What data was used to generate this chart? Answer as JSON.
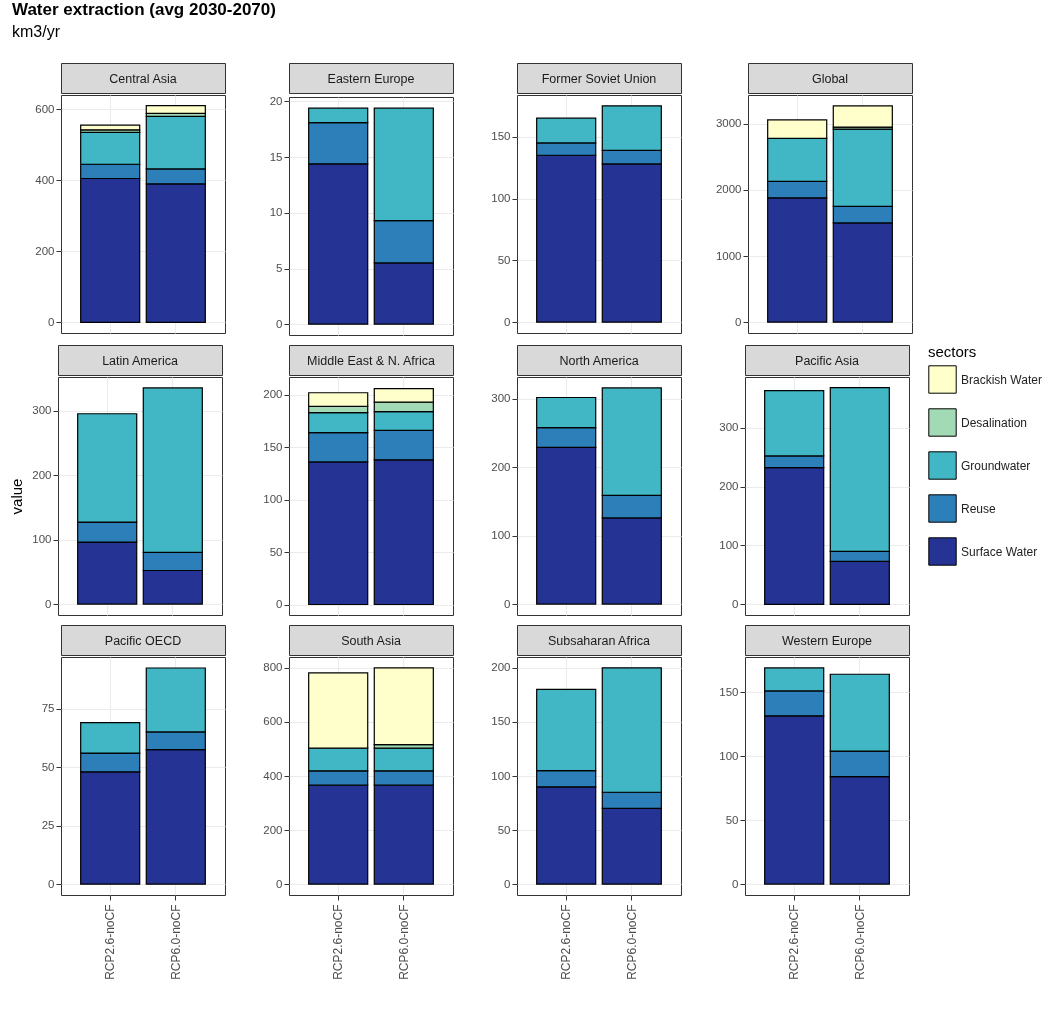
{
  "chart_data": [
    {
      "type": "bar",
      "title": "Central Asia",
      "annotations": [
        "Water extraction (avg 2030-2070)",
        "km3/yr"
      ],
      "stacked": true,
      "categories": [
        null,
        null
      ],
      "ylim": [
        -30,
        640
      ],
      "yticks": [
        0,
        200,
        400,
        600
      ],
      "grid": true,
      "tick_labels": "y",
      "series": [
        {
          "color": "#253494",
          "values": [
            405,
            390
          ]
        },
        {
          "color": "#2c7fb8",
          "values": [
            40,
            42
          ]
        },
        {
          "color": "#41b6c4",
          "values": [
            90,
            148
          ]
        },
        {
          "color": "#a1dab4",
          "values": [
            7,
            8
          ]
        },
        {
          "color": "#ffffcc",
          "values": [
            13,
            22
          ]
        }
      ]
    },
    {
      "type": "bar",
      "title": "Eastern Europe",
      "stacked": true,
      "categories": [
        null,
        null
      ],
      "ylim": [
        -0.97,
        20.4
      ],
      "yticks": [
        0,
        5,
        10,
        15,
        20
      ],
      "grid": true,
      "tick_labels": "y",
      "series": [
        {
          "color": "#253494",
          "values": [
            14.4,
            5.5
          ]
        },
        {
          "color": "#2c7fb8",
          "values": [
            3.7,
            3.8
          ]
        },
        {
          "color": "#41b6c4",
          "values": [
            1.3,
            10.1
          ]
        }
      ]
    },
    {
      "type": "bar",
      "title": "Former Soviet Union",
      "stacked": true,
      "categories": [
        null,
        null
      ],
      "ylim": [
        -8.75,
        183.75
      ],
      "yticks": [
        0,
        50,
        100,
        150
      ],
      "grid": true,
      "tick_labels": "y",
      "series": [
        {
          "color": "#253494",
          "values": [
            135,
            128
          ]
        },
        {
          "color": "#2c7fb8",
          "values": [
            10,
            11
          ]
        },
        {
          "color": "#41b6c4",
          "values": [
            20,
            36
          ]
        }
      ]
    },
    {
      "type": "bar",
      "title": "Global",
      "stacked": true,
      "categories": [
        null,
        null
      ],
      "ylim": [
        -164,
        3435
      ],
      "yticks": [
        0,
        1000,
        2000,
        3000
      ],
      "grid": true,
      "tick_labels": "y",
      "series": [
        {
          "color": "#253494",
          "values": [
            1880,
            1500
          ]
        },
        {
          "color": "#2c7fb8",
          "values": [
            250,
            250
          ]
        },
        {
          "color": "#41b6c4",
          "values": [
            650,
            1170
          ]
        },
        {
          "color": "#a1dab4",
          "values": [
            null,
            30
          ]
        },
        {
          "color": "#ffffcc",
          "values": [
            280,
            320
          ]
        }
      ]
    },
    {
      "type": "bar",
      "title": "Latin America",
      "ylabel": "value",
      "stacked": true,
      "categories": [
        null,
        null
      ],
      "ylim": [
        -17,
        352
      ],
      "yticks": [
        0,
        100,
        200,
        300
      ],
      "grid": true,
      "tick_labels": "y",
      "series": [
        {
          "color": "#253494",
          "values": [
            96,
            52
          ]
        },
        {
          "color": "#2c7fb8",
          "values": [
            31,
            28
          ]
        },
        {
          "color": "#41b6c4",
          "values": [
            168,
            255
          ]
        }
      ]
    },
    {
      "type": "bar",
      "title": "Middle East & N. Africa",
      "stacked": true,
      "categories": [
        null,
        null
      ],
      "ylim": [
        -10,
        217
      ],
      "yticks": [
        0,
        50,
        100,
        150,
        200
      ],
      "grid": true,
      "tick_labels": "y",
      "series": [
        {
          "color": "#253494",
          "values": [
            136,
            138
          ]
        },
        {
          "color": "#2c7fb8",
          "values": [
            28,
            28
          ]
        },
        {
          "color": "#41b6c4",
          "values": [
            19,
            18
          ]
        },
        {
          "color": "#a1dab4",
          "values": [
            6,
            9
          ]
        },
        {
          "color": "#ffffcc",
          "values": [
            13,
            13
          ]
        }
      ]
    },
    {
      "type": "bar",
      "title": "North America",
      "stacked": true,
      "categories": [
        null,
        null
      ],
      "ylim": [
        -16,
        332
      ],
      "yticks": [
        0,
        100,
        200,
        300
      ],
      "grid": true,
      "tick_labels": "y",
      "series": [
        {
          "color": "#253494",
          "values": [
            229,
            126
          ]
        },
        {
          "color": "#2c7fb8",
          "values": [
            29,
            33
          ]
        },
        {
          "color": "#41b6c4",
          "values": [
            44,
            157
          ]
        }
      ]
    },
    {
      "type": "bar",
      "title": "Pacific Asia",
      "legend": "right",
      "legend_title": "sectors",
      "stacked": true,
      "categories": [
        null,
        null
      ],
      "ylim": [
        -18,
        386
      ],
      "yticks": [
        0,
        100,
        200,
        300
      ],
      "grid": true,
      "tick_labels": "y",
      "series": [
        {
          "name": "Surface Water",
          "color": "#253494",
          "values": [
            232,
            73
          ]
        },
        {
          "name": "Reuse",
          "color": "#2c7fb8",
          "values": [
            20,
            17
          ]
        },
        {
          "name": "Groundwater",
          "color": "#41b6c4",
          "values": [
            111,
            278
          ]
        },
        {
          "name": "Desalination",
          "color": "#a1dab4",
          "values": [
            null,
            null
          ]
        },
        {
          "name": "Brackish Water",
          "color": "#ffffcc",
          "values": [
            null,
            null
          ]
        }
      ]
    },
    {
      "type": "bar",
      "title": "Pacific OECD",
      "stacked": true,
      "categories": [
        "RCP2.6-noCF",
        "RCP6.0-noCF"
      ],
      "ylim": [
        -4.6,
        97
      ],
      "yticks": [
        0,
        25,
        50,
        75
      ],
      "grid": true,
      "series": [
        {
          "color": "#253494",
          "values": [
            48,
            57.5
          ]
        },
        {
          "color": "#2c7fb8",
          "values": [
            8,
            7.5
          ]
        },
        {
          "color": "#41b6c4",
          "values": [
            13,
            27.3
          ]
        }
      ]
    },
    {
      "type": "bar",
      "title": "South Asia",
      "stacked": true,
      "categories": [
        "RCP2.6-noCF",
        "RCP6.0-noCF"
      ],
      "ylim": [
        -40,
        840
      ],
      "yticks": [
        0,
        200,
        400,
        600,
        800
      ],
      "grid": true,
      "series": [
        {
          "color": "#253494",
          "values": [
            366,
            366
          ]
        },
        {
          "color": "#2c7fb8",
          "values": [
            53,
            53
          ]
        },
        {
          "color": "#41b6c4",
          "values": [
            84,
            84
          ]
        },
        {
          "color": "#a1dab4",
          "values": [
            null,
            13
          ]
        },
        {
          "color": "#ffffcc",
          "values": [
            278,
            284
          ]
        }
      ]
    },
    {
      "type": "bar",
      "title": "Subsaharan Africa",
      "stacked": true,
      "categories": [
        "RCP2.6-noCF",
        "RCP6.0-noCF"
      ],
      "ylim": [
        -10,
        210
      ],
      "yticks": [
        0,
        50,
        100,
        150,
        200
      ],
      "grid": true,
      "series": [
        {
          "color": "#253494",
          "values": [
            90,
            70
          ]
        },
        {
          "color": "#2c7fb8",
          "values": [
            15,
            15
          ]
        },
        {
          "color": "#41b6c4",
          "values": [
            75,
            115
          ]
        }
      ]
    },
    {
      "type": "bar",
      "title": "Western Europe",
      "stacked": true,
      "categories": [
        "RCP2.6-noCF",
        "RCP6.0-noCF"
      ],
      "ylim": [
        -8.5,
        177.5
      ],
      "yticks": [
        0,
        50,
        100,
        150
      ],
      "grid": true,
      "series": [
        {
          "color": "#253494",
          "values": [
            131.5,
            84
          ]
        },
        {
          "color": "#2c7fb8",
          "values": [
            19.5,
            20
          ]
        },
        {
          "color": "#41b6c4",
          "values": [
            18,
            60
          ]
        }
      ]
    }
  ]
}
